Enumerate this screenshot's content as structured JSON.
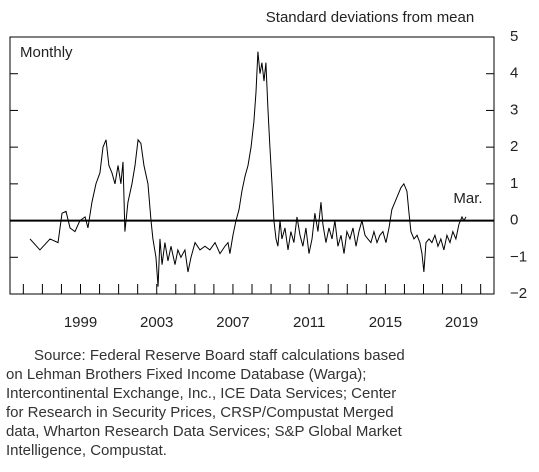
{
  "chart_data": {
    "type": "line",
    "y_axis_label": "Standard deviations from mean",
    "annotations": [
      "Monthly",
      "Mar."
    ],
    "xlim": [
      1995.3,
      2020.7
    ],
    "xticks": [
      1999,
      2003,
      2007,
      2011,
      2015,
      2019
    ],
    "minor_xticks": [
      1996,
      1997,
      1998,
      1999,
      2000,
      2001,
      2002,
      2003,
      2004,
      2005,
      2006,
      2007,
      2008,
      2009,
      2010,
      2011,
      2012,
      2013,
      2014,
      2015,
      2016,
      2017,
      2018,
      2019,
      2020
    ],
    "ylim": [
      -2,
      5
    ],
    "yticks": [
      {
        "value": -2,
        "label": "−2"
      },
      {
        "value": -1,
        "label": "−1"
      },
      0,
      1,
      2,
      3,
      4,
      5
    ],
    "hline": 0,
    "color": "#000000",
    "x": [
      1996.35,
      1996.87,
      1997.4,
      1997.82,
      1998.03,
      1998.24,
      1998.45,
      1998.71,
      1998.97,
      1999.24,
      1999.39,
      1999.6,
      1999.81,
      2000.02,
      2000.18,
      2000.34,
      2000.49,
      2000.65,
      2000.81,
      2000.97,
      2001.12,
      2001.23,
      2001.33,
      2001.49,
      2001.7,
      2001.86,
      2002.02,
      2002.17,
      2002.33,
      2002.54,
      2002.7,
      2002.8,
      2002.96,
      2003.07,
      2003.17,
      2003.28,
      2003.43,
      2003.59,
      2003.75,
      2003.96,
      2004.11,
      2004.27,
      2004.48,
      2004.64,
      2004.8,
      2005.01,
      2005.27,
      2005.53,
      2005.79,
      2006.06,
      2006.32,
      2006.58,
      2006.74,
      2006.84,
      2007.0,
      2007.16,
      2007.32,
      2007.47,
      2007.63,
      2007.79,
      2007.95,
      2008.1,
      2008.21,
      2008.31,
      2008.42,
      2008.52,
      2008.63,
      2008.73,
      2008.84,
      2008.94,
      2009.05,
      2009.15,
      2009.26,
      2009.36,
      2009.47,
      2009.57,
      2009.73,
      2009.89,
      2010.04,
      2010.2,
      2010.36,
      2010.52,
      2010.67,
      2010.83,
      2010.99,
      2011.15,
      2011.3,
      2011.46,
      2011.62,
      2011.72,
      2011.88,
      2012.04,
      2012.2,
      2012.35,
      2012.51,
      2012.67,
      2012.83,
      2012.98,
      2013.14,
      2013.3,
      2013.46,
      2013.61,
      2013.77,
      2013.93,
      2014.08,
      2014.24,
      2014.4,
      2014.56,
      2014.71,
      2014.87,
      2015.03,
      2015.19,
      2015.34,
      2015.5,
      2015.66,
      2015.82,
      2015.97,
      2016.13,
      2016.24,
      2016.34,
      2016.5,
      2016.66,
      2016.81,
      2016.92,
      2017.02,
      2017.13,
      2017.29,
      2017.44,
      2017.6,
      2017.76,
      2017.91,
      2018.07,
      2018.23,
      2018.39,
      2018.54,
      2018.7,
      2018.86,
      2019.02,
      2019.12,
      2019.23
    ],
    "values": [
      -0.5,
      -0.8,
      -0.5,
      -0.6,
      0.2,
      0.25,
      -0.2,
      -0.3,
      0.0,
      0.1,
      -0.2,
      0.5,
      1.0,
      1.3,
      2.0,
      2.2,
      1.5,
      1.3,
      1.0,
      1.5,
      1.0,
      1.6,
      -0.3,
      0.5,
      1.0,
      1.5,
      2.2,
      2.1,
      1.5,
      1.0,
      0.0,
      -0.5,
      -1.0,
      -1.8,
      -0.5,
      -1.2,
      -0.6,
      -1.1,
      -0.7,
      -1.2,
      -0.8,
      -1.0,
      -0.8,
      -1.4,
      -1.0,
      -0.6,
      -0.8,
      -0.7,
      -0.8,
      -0.6,
      -0.9,
      -0.7,
      -0.6,
      -0.9,
      -0.4,
      0.0,
      0.3,
      0.8,
      1.2,
      1.5,
      2.0,
      2.7,
      3.5,
      4.6,
      4.0,
      4.3,
      3.8,
      4.3,
      3.0,
      2.0,
      1.0,
      0.0,
      -0.5,
      -0.7,
      0.0,
      -0.5,
      -0.2,
      -0.8,
      -0.3,
      -0.6,
      0.1,
      -0.4,
      -0.7,
      -0.2,
      -0.9,
      -0.5,
      0.2,
      -0.3,
      0.5,
      -0.1,
      -0.6,
      -0.2,
      -0.5,
      0.0,
      -0.7,
      -0.4,
      -0.9,
      -0.3,
      -0.5,
      -0.2,
      -0.7,
      -0.3,
      0.0,
      -0.4,
      -0.5,
      -0.6,
      -0.3,
      -0.6,
      -0.4,
      -0.3,
      -0.6,
      -0.2,
      0.3,
      0.5,
      0.7,
      0.9,
      1.0,
      0.8,
      0.2,
      -0.3,
      -0.5,
      -0.4,
      -0.6,
      -0.9,
      -1.4,
      -0.6,
      -0.5,
      -0.6,
      -0.4,
      -0.7,
      -0.5,
      -0.8,
      -0.4,
      -0.6,
      -0.3,
      -0.5,
      -0.1,
      0.1,
      0.0,
      0.1
    ]
  },
  "note": [
    "Source: Federal Reserve Board staff calculations based",
    "on Lehman Brothers Fixed Income Database (Warga);",
    "Intercontinental Exchange, Inc., ICE Data Services; Center",
    "for Research in Security Prices, CRSP/Compustat Merged",
    "data, Wharton Research Data Services; S&P Global Market",
    "Intelligence, Compustat."
  ]
}
